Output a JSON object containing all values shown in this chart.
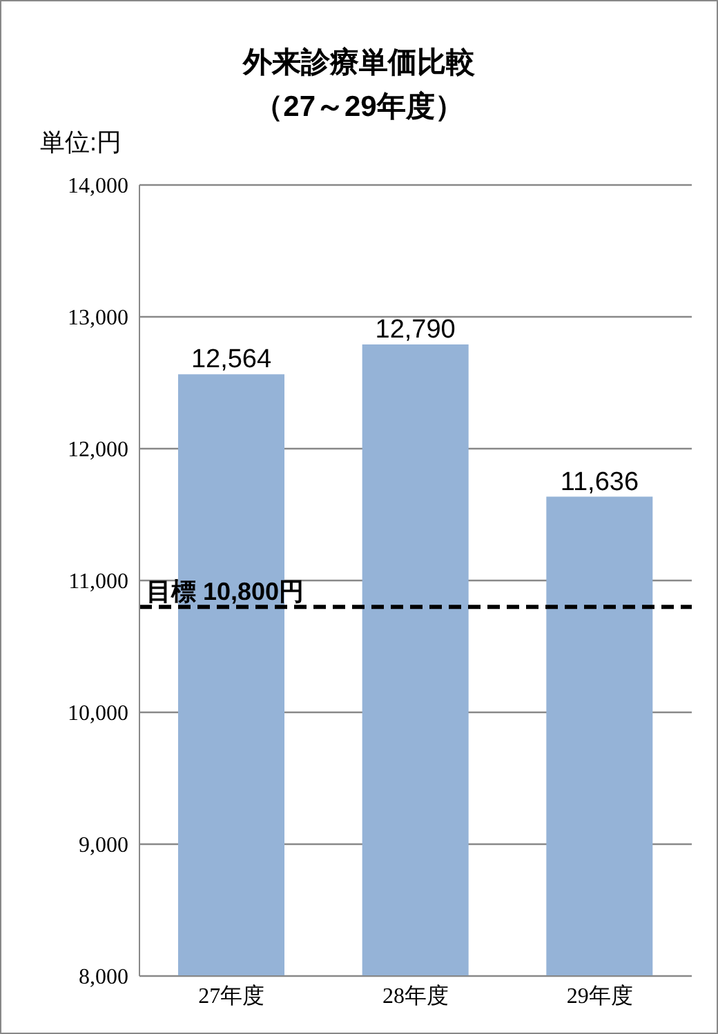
{
  "chart_data": {
    "type": "bar",
    "title": "外来診療単価比較",
    "subtitle": "（27～29年度）",
    "ylabel": "単位:円",
    "categories": [
      "27年度",
      "28年度",
      "29年度"
    ],
    "values": [
      12564,
      12790,
      11636
    ],
    "value_labels": [
      "12,564",
      "12,790",
      "11,636"
    ],
    "color": "#95b3d7",
    "ylim": [
      8000,
      14000
    ],
    "yticks": [
      {
        "value": 8000,
        "label": "8,000"
      },
      {
        "value": 9000,
        "label": "9,000"
      },
      {
        "value": 10000,
        "label": "10,000"
      },
      {
        "value": 11000,
        "label": "11,000"
      },
      {
        "value": 12000,
        "label": "12,000"
      },
      {
        "value": 13000,
        "label": "13,000"
      },
      {
        "value": 14000,
        "label": "14,000"
      }
    ],
    "grid": "y",
    "ref_lines": [
      {
        "axis": "y",
        "value": 10800,
        "label": "目標 10,800円",
        "color": "#000000",
        "line_style": "dashed"
      }
    ]
  }
}
